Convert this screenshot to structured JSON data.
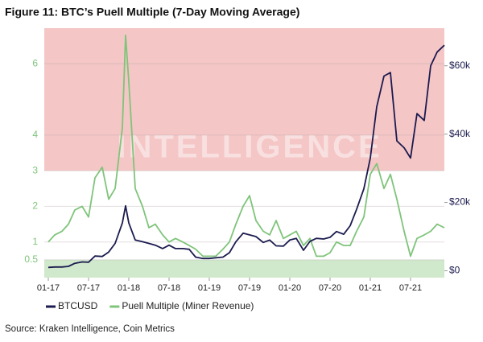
{
  "chart_data": {
    "type": "line",
    "title": "Figure 11: BTC’s Puell Multiple (7-Day Moving Average)",
    "source": "Source: Kraken Intelligence, Coin Metrics",
    "watermark": "INTELLIGENCE",
    "x": [
      2017.0,
      2017.08,
      2017.17,
      2017.25,
      2017.33,
      2017.42,
      2017.5,
      2017.58,
      2017.67,
      2017.75,
      2017.83,
      2017.92,
      2017.96,
      2018.0,
      2018.08,
      2018.17,
      2018.25,
      2018.33,
      2018.42,
      2018.5,
      2018.58,
      2018.67,
      2018.75,
      2018.83,
      2018.92,
      2019.0,
      2019.08,
      2019.17,
      2019.25,
      2019.33,
      2019.42,
      2019.5,
      2019.58,
      2019.67,
      2019.75,
      2019.83,
      2019.92,
      2020.0,
      2020.08,
      2020.17,
      2020.25,
      2020.33,
      2020.42,
      2020.5,
      2020.58,
      2020.67,
      2020.75,
      2020.83,
      2020.92,
      2021.0,
      2021.08,
      2021.17,
      2021.25,
      2021.33,
      2021.42,
      2021.5,
      2021.58,
      2021.67,
      2021.75,
      2021.83,
      2021.92
    ],
    "series": [
      {
        "name": "BTCUSD",
        "color": "#1b1b4f",
        "axis": "y2",
        "values": [
          1000,
          1100,
          1100,
          1300,
          2200,
          2600,
          2500,
          4300,
          4200,
          5500,
          8000,
          14000,
          19000,
          14000,
          9000,
          8500,
          8000,
          7500,
          6500,
          7500,
          6500,
          6500,
          6300,
          4000,
          3600,
          3600,
          3800,
          4000,
          5300,
          8500,
          11000,
          10500,
          10000,
          8300,
          9000,
          7300,
          7200,
          9000,
          9500,
          6000,
          8600,
          9500,
          9300,
          9800,
          11500,
          10700,
          13200,
          18000,
          24000,
          33000,
          48000,
          57000,
          58000,
          38000,
          36000,
          33000,
          46000,
          44000,
          60000,
          64000,
          66000
        ]
      },
      {
        "name": "Puell Multiple (Miner Revenue)",
        "color": "#7fc47a",
        "axis": "y",
        "values": [
          1.0,
          1.2,
          1.3,
          1.5,
          1.9,
          2.0,
          1.7,
          2.8,
          3.1,
          2.2,
          2.5,
          4.2,
          6.8,
          5.5,
          2.5,
          2.0,
          1.4,
          1.5,
          1.2,
          1.0,
          1.1,
          1.0,
          0.9,
          0.8,
          0.6,
          0.6,
          0.6,
          0.8,
          1.0,
          1.5,
          2.0,
          2.3,
          1.6,
          1.3,
          1.2,
          1.6,
          1.1,
          1.2,
          1.3,
          0.9,
          1.1,
          0.6,
          0.6,
          0.7,
          1.0,
          0.9,
          0.9,
          1.3,
          1.7,
          2.9,
          3.2,
          2.5,
          2.9,
          2.2,
          1.3,
          0.6,
          1.1,
          1.2,
          1.3,
          1.5,
          1.4
        ]
      }
    ],
    "xlim": [
      2016.95,
      2021.92
    ],
    "xticks": [
      {
        "value": 2017.0,
        "label": "01-17"
      },
      {
        "value": 2017.5,
        "label": "07-17"
      },
      {
        "value": 2018.0,
        "label": "01-18"
      },
      {
        "value": 2018.5,
        "label": "07-18"
      },
      {
        "value": 2019.0,
        "label": "01-19"
      },
      {
        "value": 2019.5,
        "label": "07-19"
      },
      {
        "value": 2020.0,
        "label": "01-20"
      },
      {
        "value": 2020.5,
        "label": "07-20"
      },
      {
        "value": 2021.0,
        "label": "01-21"
      },
      {
        "value": 2021.5,
        "label": "07-21"
      }
    ],
    "ylim": [
      0,
      7
    ],
    "yticks": [
      0.5,
      1,
      2,
      3,
      4,
      6
    ],
    "y2lim": [
      -2000,
      71000
    ],
    "y2ticks": [
      {
        "value": 0,
        "label": "$0"
      },
      {
        "value": 20000,
        "label": "$20k"
      },
      {
        "value": 40000,
        "label": "$40k"
      },
      {
        "value": 60000,
        "label": "$60k"
      }
    ],
    "bands": [
      {
        "from": 3,
        "to": 7,
        "color": "#f5c6c6"
      },
      {
        "from": 0,
        "to": 0.5,
        "color": "#d0e8cb"
      }
    ],
    "grid": true
  }
}
